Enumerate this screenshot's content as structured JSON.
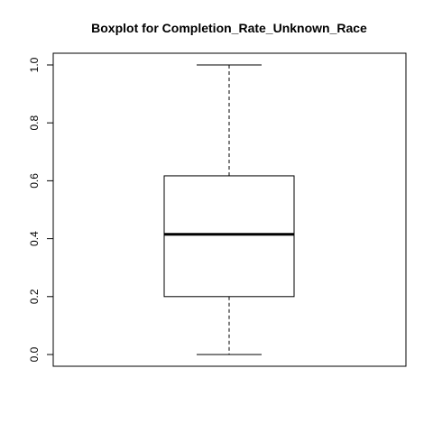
{
  "chart_data": {
    "type": "box",
    "title": "Boxplot for  Completion_Rate_Unknown_Race",
    "xlabel": "",
    "ylabel": "",
    "ylim": [
      0,
      1
    ],
    "y_ticks": [
      0.0,
      0.2,
      0.4,
      0.6,
      0.8,
      1.0
    ],
    "y_tick_labels": [
      "0.0",
      "0.2",
      "0.4",
      "0.6",
      "0.8",
      "1.0"
    ],
    "series": [
      {
        "min": 0.0,
        "q1": 0.2,
        "median": 0.415,
        "q3": 0.617,
        "max": 1.0
      }
    ],
    "grid": false,
    "legend": "none",
    "colors": {
      "stroke": "#000000",
      "background": "#ffffff"
    }
  }
}
